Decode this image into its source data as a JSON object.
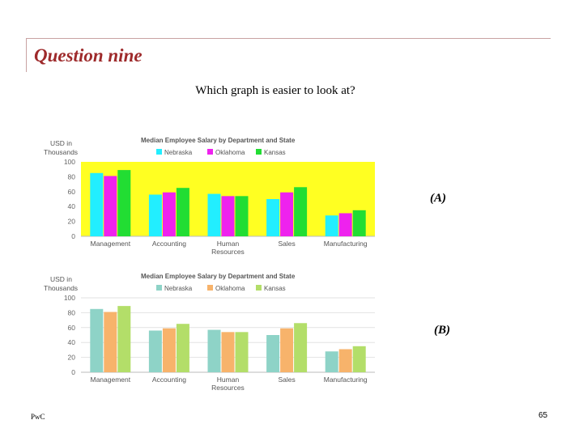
{
  "slide": {
    "title": "Question nine",
    "question": "Which graph is easier to look at?",
    "footer_brand": "PwC",
    "page_number": "65",
    "accent_color": "#9e2a2b"
  },
  "labels": {
    "a": "(A)",
    "b": "(B)"
  },
  "chart_data": [
    {
      "type": "bar",
      "title": "Median Employee Salary by Department and State",
      "ylabel": "USD in Thousands",
      "xlabel": "",
      "categories": [
        "Management",
        "Accounting",
        "Human Resources",
        "Sales",
        "Manufacturing"
      ],
      "series": [
        {
          "name": "Nebraska",
          "values": [
            85,
            56,
            57,
            50,
            28
          ],
          "color": "#22eeff"
        },
        {
          "name": "Oklahoma",
          "values": [
            81,
            59,
            54,
            59,
            31
          ],
          "color": "#ee22ee"
        },
        {
          "name": "Kansas",
          "values": [
            89,
            65,
            54,
            66,
            35
          ],
          "color": "#22dd33"
        }
      ],
      "ylim": [
        0,
        100
      ],
      "yticks": [
        0,
        20,
        40,
        60,
        80,
        100
      ],
      "plot_background": "#ffff22",
      "grid": false,
      "legend": "top"
    },
    {
      "type": "bar",
      "title": "Median Employee Salary by Department and State",
      "ylabel": "USD in Thousands",
      "xlabel": "",
      "categories": [
        "Management",
        "Accounting",
        "Human Resources",
        "Sales",
        "Manufacturing"
      ],
      "series": [
        {
          "name": "Nebraska",
          "values": [
            85,
            56,
            57,
            50,
            28
          ],
          "color": "#8ed3c7"
        },
        {
          "name": "Oklahoma",
          "values": [
            81,
            59,
            54,
            59,
            31
          ],
          "color": "#f7b36b"
        },
        {
          "name": "Kansas",
          "values": [
            89,
            65,
            54,
            66,
            35
          ],
          "color": "#b3de69"
        }
      ],
      "ylim": [
        0,
        100
      ],
      "yticks": [
        0,
        20,
        40,
        60,
        80,
        100
      ],
      "plot_background": "#ffffff",
      "grid": true,
      "legend": "top"
    }
  ]
}
